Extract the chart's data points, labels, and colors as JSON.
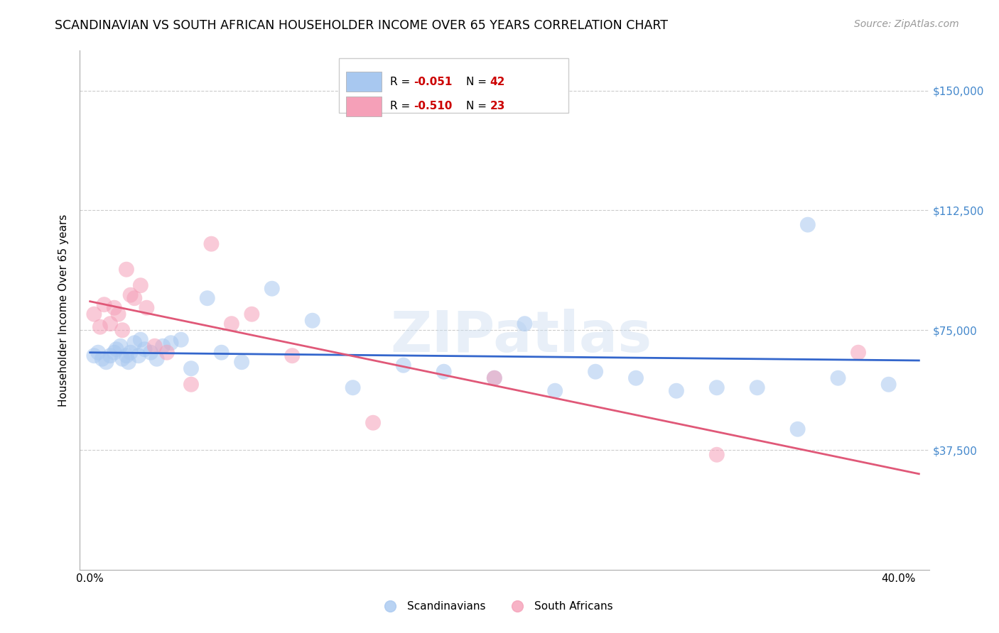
{
  "title": "SCANDINAVIAN VS SOUTH AFRICAN HOUSEHOLDER INCOME OVER 65 YEARS CORRELATION CHART",
  "source": "Source: ZipAtlas.com",
  "ylabel": "Householder Income Over 65 years",
  "xlabel_ticks": [
    "0.0%",
    "",
    "",
    "",
    "40.0%"
  ],
  "xlabel_vals": [
    0.0,
    0.1,
    0.2,
    0.3,
    0.4
  ],
  "ylim": [
    0,
    162500
  ],
  "xlim": [
    -0.005,
    0.415
  ],
  "yticks": [
    37500,
    75000,
    112500,
    150000
  ],
  "ytick_labels": [
    "$37,500",
    "$75,000",
    "$112,500",
    "$150,000"
  ],
  "grid_color": "#cccccc",
  "background_color": "#ffffff",
  "scandinavian_x": [
    0.002,
    0.004,
    0.006,
    0.008,
    0.01,
    0.012,
    0.013,
    0.015,
    0.016,
    0.018,
    0.019,
    0.02,
    0.022,
    0.024,
    0.025,
    0.027,
    0.03,
    0.033,
    0.036,
    0.04,
    0.045,
    0.05,
    0.058,
    0.065,
    0.075,
    0.09,
    0.11,
    0.13,
    0.155,
    0.175,
    0.2,
    0.215,
    0.23,
    0.25,
    0.27,
    0.29,
    0.31,
    0.33,
    0.35,
    0.37,
    0.355,
    0.395
  ],
  "scandinavian_y": [
    67000,
    68000,
    66000,
    65000,
    67000,
    68000,
    69000,
    70000,
    66000,
    67000,
    65000,
    68000,
    71000,
    67000,
    72000,
    69000,
    68000,
    66000,
    70000,
    71000,
    72000,
    63000,
    85000,
    68000,
    65000,
    88000,
    78000,
    57000,
    64000,
    62000,
    60000,
    77000,
    56000,
    62000,
    60000,
    56000,
    57000,
    57000,
    44000,
    60000,
    108000,
    58000
  ],
  "south_african_x": [
    0.002,
    0.005,
    0.007,
    0.01,
    0.012,
    0.014,
    0.016,
    0.018,
    0.02,
    0.022,
    0.025,
    0.028,
    0.032,
    0.038,
    0.05,
    0.06,
    0.07,
    0.08,
    0.1,
    0.14,
    0.2,
    0.31,
    0.38
  ],
  "south_african_y": [
    80000,
    76000,
    83000,
    77000,
    82000,
    80000,
    75000,
    94000,
    86000,
    85000,
    89000,
    82000,
    70000,
    68000,
    58000,
    102000,
    77000,
    80000,
    67000,
    46000,
    60000,
    36000,
    68000
  ],
  "scand_line_x": [
    0.0,
    0.41
  ],
  "scand_line_y": [
    68000,
    65500
  ],
  "sa_line_x": [
    0.0,
    0.41
  ],
  "sa_line_y": [
    84000,
    30000
  ],
  "dot_size": 250,
  "dot_alpha": 0.55,
  "scand_color": "#a8c8f0",
  "sa_color": "#f5a0b8",
  "scand_line_color": "#3366cc",
  "sa_line_color": "#e05878",
  "title_fontsize": 12.5,
  "label_fontsize": 11,
  "tick_fontsize": 11,
  "source_fontsize": 10
}
